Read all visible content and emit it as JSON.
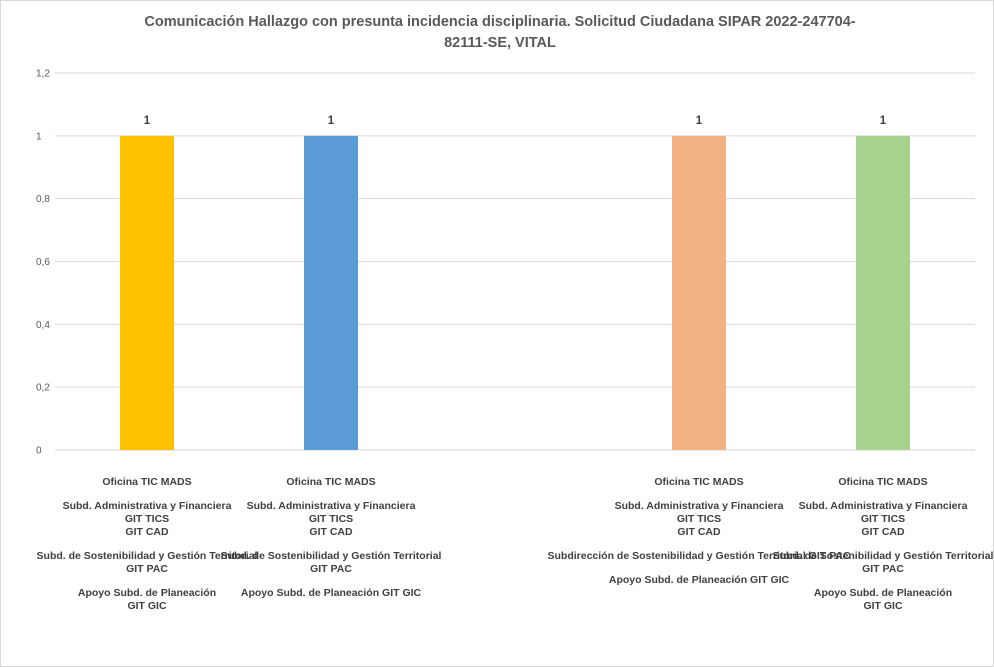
{
  "chart_data": {
    "type": "bar",
    "title_lines": [
      "Comunicación Hallazgo con presunta incidencia disciplinaria. Solicitud Ciudadana SIPAR 2022-247704-",
      "82111-SE, VITAL"
    ],
    "y_ticks": [
      "0",
      "0,2",
      "0,4",
      "0,6",
      "0,8",
      "1",
      "1,2"
    ],
    "ylim": [
      0,
      1.2
    ],
    "grid": true,
    "categories": [
      {
        "lines": [
          "Oficina TIC MADS",
          "",
          "Subd. Administrativa y Financiera",
          "GIT TICS",
          "GIT CAD",
          "",
          "Subd. de Sostenibilidad  y Gestión Territorial",
          "GIT PAC",
          "",
          "Apoyo Subd. de Planeación",
          "GIT GIC"
        ]
      },
      {
        "lines": [
          "Oficina TIC MADS",
          "",
          "Subd. Administrativa y Financiera",
          "GIT TICS",
          "GIT CAD",
          "",
          "Subd. de Sostenibilidad  y Gestión Territorial",
          "GIT PAC",
          "",
          "Apoyo Subd. de Planeación GIT GIC"
        ]
      },
      {
        "lines": [
          "",
          "",
          "",
          "",
          "",
          "",
          "",
          "",
          "",
          ""
        ]
      },
      {
        "lines": [
          "Oficina TIC MADS",
          "",
          "Subd. Administrativa y Financiera",
          "GIT TICS",
          "GIT CAD",
          "",
          "Subdirección de Sostenibilidad y Gestión Territorial GIT PAC",
          "",
          "Apoyo Subd. de Planeación GIT GIC"
        ]
      },
      {
        "lines": [
          "Oficina TIC MADS",
          "",
          "Subd. Administrativa y Financiera",
          "GIT TICS",
          "GIT CAD",
          "",
          "Subd. de Sostenibilidad  y Gestión Territorial",
          "GIT PAC",
          "",
          "Apoyo Subd. de Planeación",
          "GIT GIC"
        ]
      }
    ],
    "values": [
      1,
      1,
      null,
      1,
      1
    ],
    "data_labels": [
      "1",
      "1",
      "",
      "1",
      "1"
    ],
    "colors": [
      "#ffc000",
      "#5b9bd5",
      "#ffffff",
      "#f4b183",
      "#a9d18e"
    ]
  }
}
